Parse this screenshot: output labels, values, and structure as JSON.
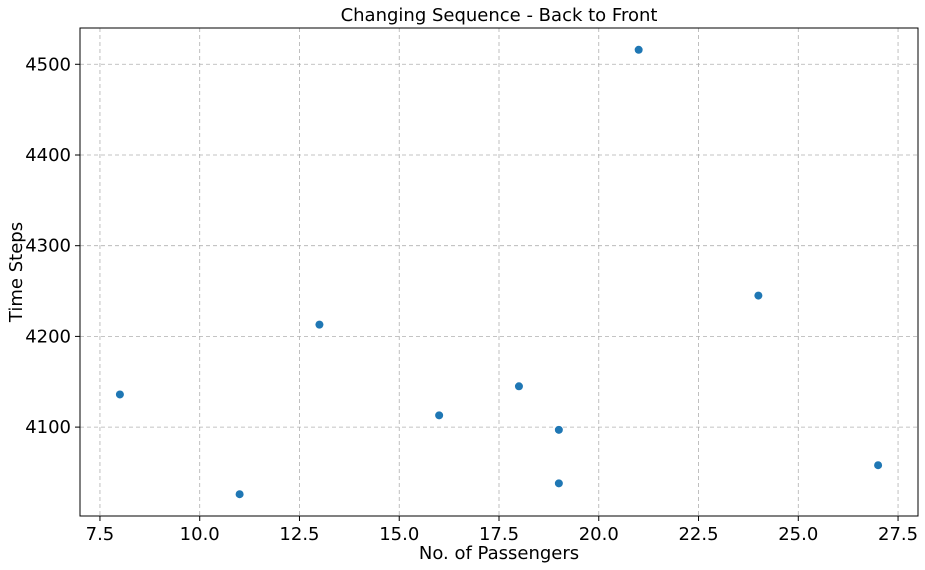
{
  "chart_data": {
    "type": "scatter",
    "title": "Changing Sequence - Back to Front",
    "xlabel": "No. of Passengers",
    "ylabel": "Time Steps",
    "xlim": [
      7.0,
      28.0
    ],
    "ylim": [
      4002,
      4540
    ],
    "x_ticks": [
      7.5,
      10.0,
      12.5,
      15.0,
      17.5,
      20.0,
      22.5,
      25.0,
      27.5
    ],
    "x_tick_labels": [
      "7.5",
      "10.0",
      "12.5",
      "15.0",
      "17.5",
      "20.0",
      "22.5",
      "25.0",
      "27.5"
    ],
    "y_ticks": [
      4100,
      4200,
      4300,
      4400,
      4500
    ],
    "y_tick_labels": [
      "4100",
      "4200",
      "4300",
      "4400",
      "4500"
    ],
    "grid": true,
    "marker_color": "#1f77b4",
    "series": [
      {
        "points": [
          {
            "x": 8,
            "y": 4136
          },
          {
            "x": 11,
            "y": 4026
          },
          {
            "x": 13,
            "y": 4213
          },
          {
            "x": 16,
            "y": 4113
          },
          {
            "x": 18,
            "y": 4145
          },
          {
            "x": 19,
            "y": 4097
          },
          {
            "x": 19,
            "y": 4038
          },
          {
            "x": 21,
            "y": 4516
          },
          {
            "x": 24,
            "y": 4245
          },
          {
            "x": 27,
            "y": 4058
          }
        ]
      }
    ]
  }
}
